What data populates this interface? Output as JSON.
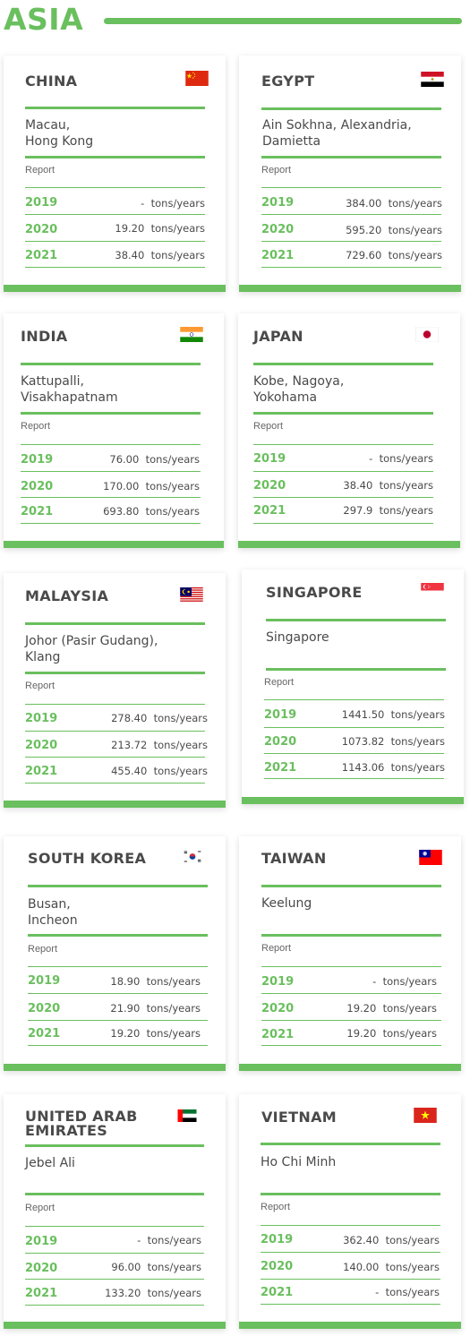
{
  "region": {
    "title": "ASIA"
  },
  "unit": "tons/years",
  "report_label": "Report",
  "cards": [
    {
      "country": "CHINA",
      "flag": "china-flag-icon",
      "ports": [
        "Macau,",
        "Hong Kong"
      ],
      "rows": [
        {
          "year": "2019",
          "value": "-"
        },
        {
          "year": "2020",
          "value": "19.20"
        },
        {
          "year": "2021",
          "value": "38.40"
        }
      ]
    },
    {
      "country": "EGYPT",
      "flag": "egypt-flag-icon",
      "ports": [
        "Ain Sokhna, Alexandria,",
        "Damietta"
      ],
      "rows": [
        {
          "year": "2019",
          "value": "384.00"
        },
        {
          "year": "2020",
          "value": "595.20"
        },
        {
          "year": "2021",
          "value": "729.60"
        }
      ]
    },
    {
      "country": "INDIA",
      "flag": "india-flag-icon",
      "ports": [
        "Kattupalli,",
        "Visakhapatnam"
      ],
      "rows": [
        {
          "year": "2019",
          "value": "76.00"
        },
        {
          "year": "2020",
          "value": "170.00"
        },
        {
          "year": "2021",
          "value": "693.80"
        }
      ]
    },
    {
      "country": "JAPAN",
      "flag": "japan-flag-icon",
      "ports": [
        "Kobe, Nagoya,",
        "Yokohama"
      ],
      "rows": [
        {
          "year": "2019",
          "value": "-"
        },
        {
          "year": "2020",
          "value": "38.40"
        },
        {
          "year": "2021",
          "value": "297.9"
        }
      ]
    },
    {
      "country": "MALAYSIA",
      "flag": "malaysia-flag-icon",
      "ports": [
        "Johor (Pasir Gudang),",
        "Klang"
      ],
      "rows": [
        {
          "year": "2019",
          "value": "278.40"
        },
        {
          "year": "2020",
          "value": "213.72"
        },
        {
          "year": "2021",
          "value": "455.40"
        }
      ]
    },
    {
      "country": "SINGAPORE",
      "flag": "singapore-flag-icon",
      "ports": [
        "Singapore"
      ],
      "rows": [
        {
          "year": "2019",
          "value": "1441.50"
        },
        {
          "year": "2020",
          "value": "1073.82"
        },
        {
          "year": "2021",
          "value": "1143.06"
        }
      ]
    },
    {
      "country": "SOUTH KOREA",
      "flag": "south-korea-flag-icon",
      "ports": [
        "Busan,",
        "Incheon"
      ],
      "rows": [
        {
          "year": "2019",
          "value": "18.90"
        },
        {
          "year": "2020",
          "value": "21.90"
        },
        {
          "year": "2021",
          "value": "19.20"
        }
      ]
    },
    {
      "country": "TAIWAN",
      "flag": "taiwan-flag-icon",
      "ports": [
        "Keelung"
      ],
      "rows": [
        {
          "year": "2019",
          "value": "-"
        },
        {
          "year": "2020",
          "value": "19.20"
        },
        {
          "year": "2021",
          "value": "19.20"
        }
      ]
    },
    {
      "country": [
        "UNITED ARAB",
        "EMIRATES"
      ],
      "flag": "uae-flag-icon",
      "ports": [
        "Jebel Ali"
      ],
      "rows": [
        {
          "year": "2019",
          "value": "-"
        },
        {
          "year": "2020",
          "value": "96.00"
        },
        {
          "year": "2021",
          "value": "133.20"
        }
      ]
    },
    {
      "country": "VIETNAM",
      "flag": "vietnam-flag-icon",
      "ports": [
        "Ho Chi Minh"
      ],
      "rows": [
        {
          "year": "2019",
          "value": "362.40"
        },
        {
          "year": "2020",
          "value": "140.00"
        },
        {
          "year": "2021",
          "value": "-"
        }
      ]
    }
  ],
  "colors": {
    "accent": "#6abf5e",
    "text": "#4a4a4a"
  }
}
